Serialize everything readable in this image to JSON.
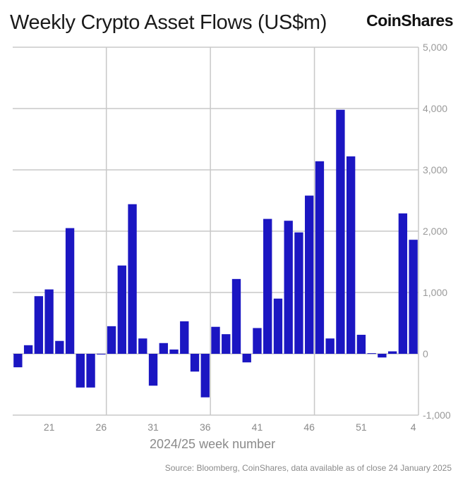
{
  "chart_data": {
    "type": "bar",
    "title": "Weekly Crypto Asset Flows (US$m)",
    "xlabel": "2024/25 week number",
    "ylabel": "",
    "ylim": [
      -1000,
      5000
    ],
    "yticks": [
      -1000,
      0,
      1000,
      2000,
      3000,
      4000,
      5000
    ],
    "ytick_labels": [
      "-1,000",
      "0",
      "1,000",
      "2,000",
      "3,000",
      "4,000",
      "5,000"
    ],
    "y_axis_position": "right",
    "grid": true,
    "categories": [
      "18",
      "19",
      "20",
      "21",
      "22",
      "23",
      "24",
      "25",
      "26",
      "27",
      "28",
      "29",
      "30",
      "31",
      "32",
      "33",
      "34",
      "35",
      "36",
      "37",
      "38",
      "39",
      "40",
      "41",
      "42",
      "43",
      "44",
      "45",
      "46",
      "47",
      "48",
      "49",
      "50",
      "51",
      "52",
      "1",
      "2",
      "3",
      "4"
    ],
    "xtick_labels": [
      "21",
      "26",
      "31",
      "36",
      "41",
      "46",
      "51",
      "4"
    ],
    "values": [
      -220,
      140,
      940,
      1050,
      210,
      2050,
      -550,
      -550,
      -10,
      450,
      1440,
      2440,
      250,
      -520,
      175,
      70,
      530,
      -290,
      -710,
      440,
      320,
      1220,
      -140,
      420,
      2200,
      900,
      2170,
      1980,
      2580,
      3140,
      250,
      3980,
      3220,
      310,
      10,
      -60,
      40,
      2290,
      1860
    ],
    "bar_color": "#1b16c2",
    "source": "Source: Bloomberg, CoinShares, data available as of close 24 January 2025"
  },
  "brand": {
    "logo_text": "CoinShares"
  }
}
